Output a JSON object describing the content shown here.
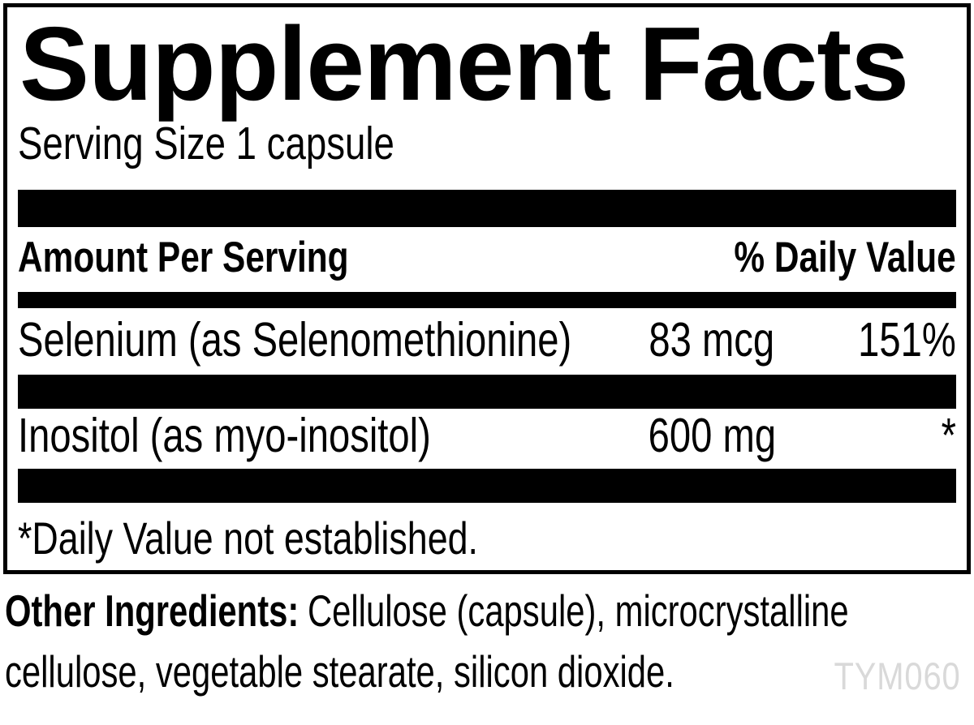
{
  "label": {
    "title": "Supplement Facts",
    "serving_size": "Serving Size 1 capsule",
    "header": {
      "amount_per_serving": "Amount Per Serving",
      "percent_daily_value": "% Daily Value"
    },
    "rows": [
      {
        "name": "Selenium (as Selenomethionine)",
        "amount": "83 mcg",
        "daily_value": "151%"
      },
      {
        "name": "Inositol (as myo-inositol)",
        "amount": "600 mg",
        "daily_value": "*"
      }
    ],
    "footnote": "*Daily Value not established.",
    "other_ingredients": {
      "label": "Other Ingredients:",
      "line1": "Cellulose (capsule), microcrystalline",
      "line2": "cellulose, vegetable stearate, silicon dioxide."
    },
    "product_code": "TYM060",
    "colors": {
      "text": "#000000",
      "background": "#ffffff",
      "bars": "#000000",
      "watermark": "#d9d9d9"
    }
  }
}
